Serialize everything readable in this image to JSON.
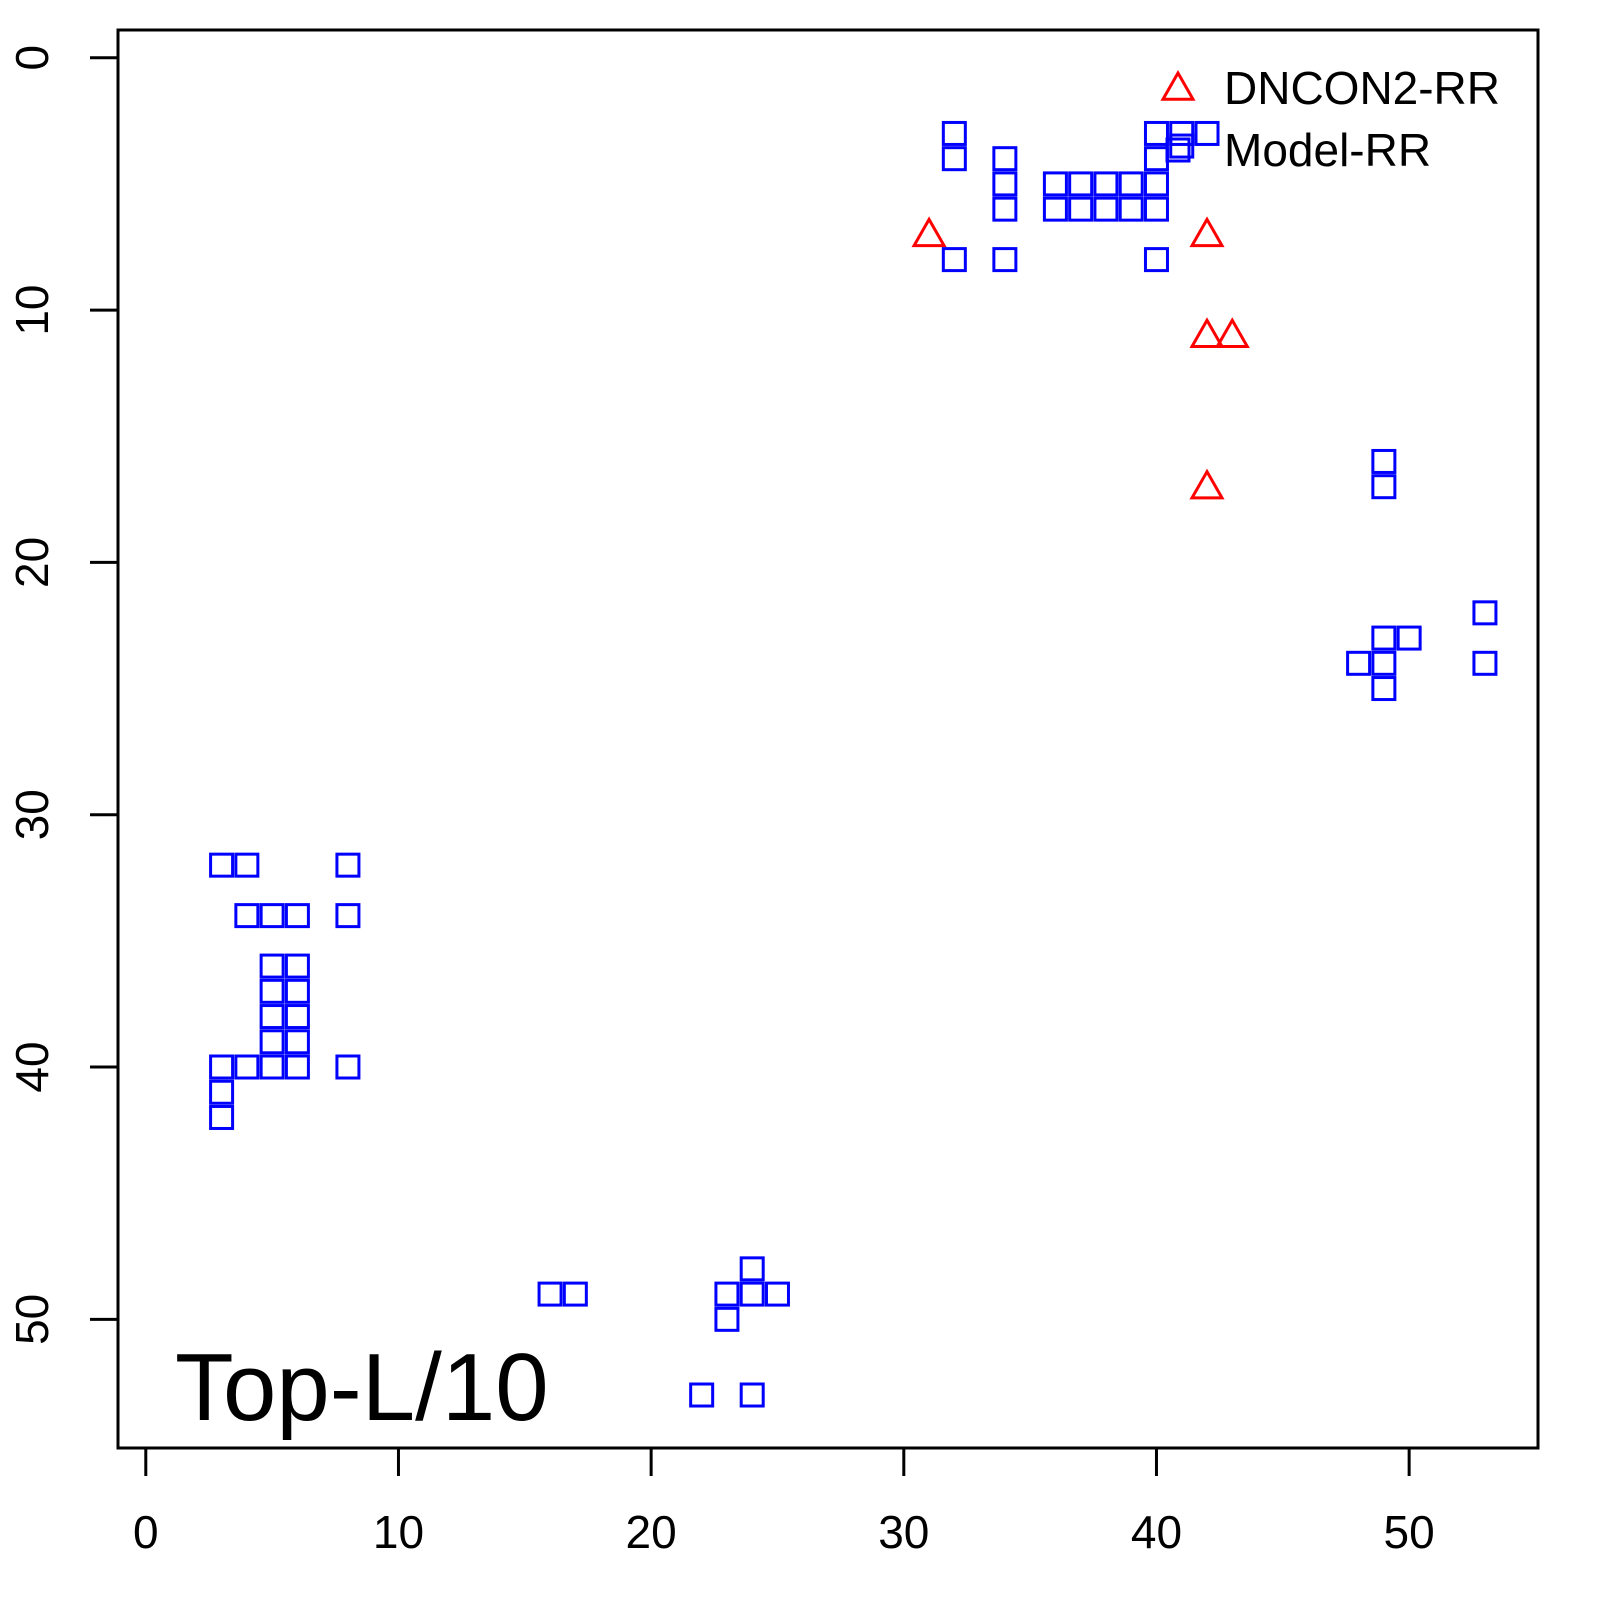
{
  "chart_data": {
    "type": "scatter",
    "annotation": "Top-L/10",
    "xlim": [
      -1.1,
      55.1
    ],
    "ylim": [
      -1.1,
      55.1
    ],
    "y_reversed": true,
    "xticks": [
      0,
      10,
      20,
      30,
      40,
      50
    ],
    "yticks": [
      0,
      10,
      20,
      30,
      40,
      50
    ],
    "legend_position": "top-right",
    "series": [
      {
        "name": "DNCON2-RR",
        "color": "#ff0000",
        "marker": "triangle",
        "x": [
          31,
          42,
          42,
          43,
          42
        ],
        "y": [
          7,
          7,
          11,
          11,
          17
        ]
      },
      {
        "name": "Model-RR",
        "color": "#0000ff",
        "marker": "square",
        "x": [
          32,
          32,
          32,
          34,
          34,
          34,
          34,
          36,
          36,
          37,
          37,
          38,
          38,
          39,
          39,
          40,
          40,
          40,
          40,
          40,
          41,
          41,
          42,
          49,
          49,
          53,
          49,
          50,
          48,
          49,
          53,
          49,
          3,
          4,
          8,
          4,
          5,
          6,
          8,
          5,
          6,
          5,
          6,
          5,
          6,
          5,
          6,
          3,
          4,
          5,
          6,
          8,
          3,
          3,
          16,
          17,
          23,
          24,
          24,
          25,
          23,
          22,
          24
        ],
        "y": [
          3,
          4,
          8,
          4,
          5,
          6,
          8,
          5,
          6,
          5,
          6,
          5,
          6,
          5,
          6,
          5,
          6,
          3,
          4,
          8,
          3,
          3.5,
          3,
          16,
          17,
          22,
          23,
          23,
          24,
          24,
          24,
          25,
          32,
          32,
          32,
          34,
          34,
          34,
          34,
          36,
          36,
          37,
          37,
          38,
          38,
          39,
          39,
          40,
          40,
          40,
          40,
          40,
          41,
          42,
          49,
          49,
          49,
          48,
          49,
          49,
          50,
          53,
          53
        ]
      }
    ]
  }
}
